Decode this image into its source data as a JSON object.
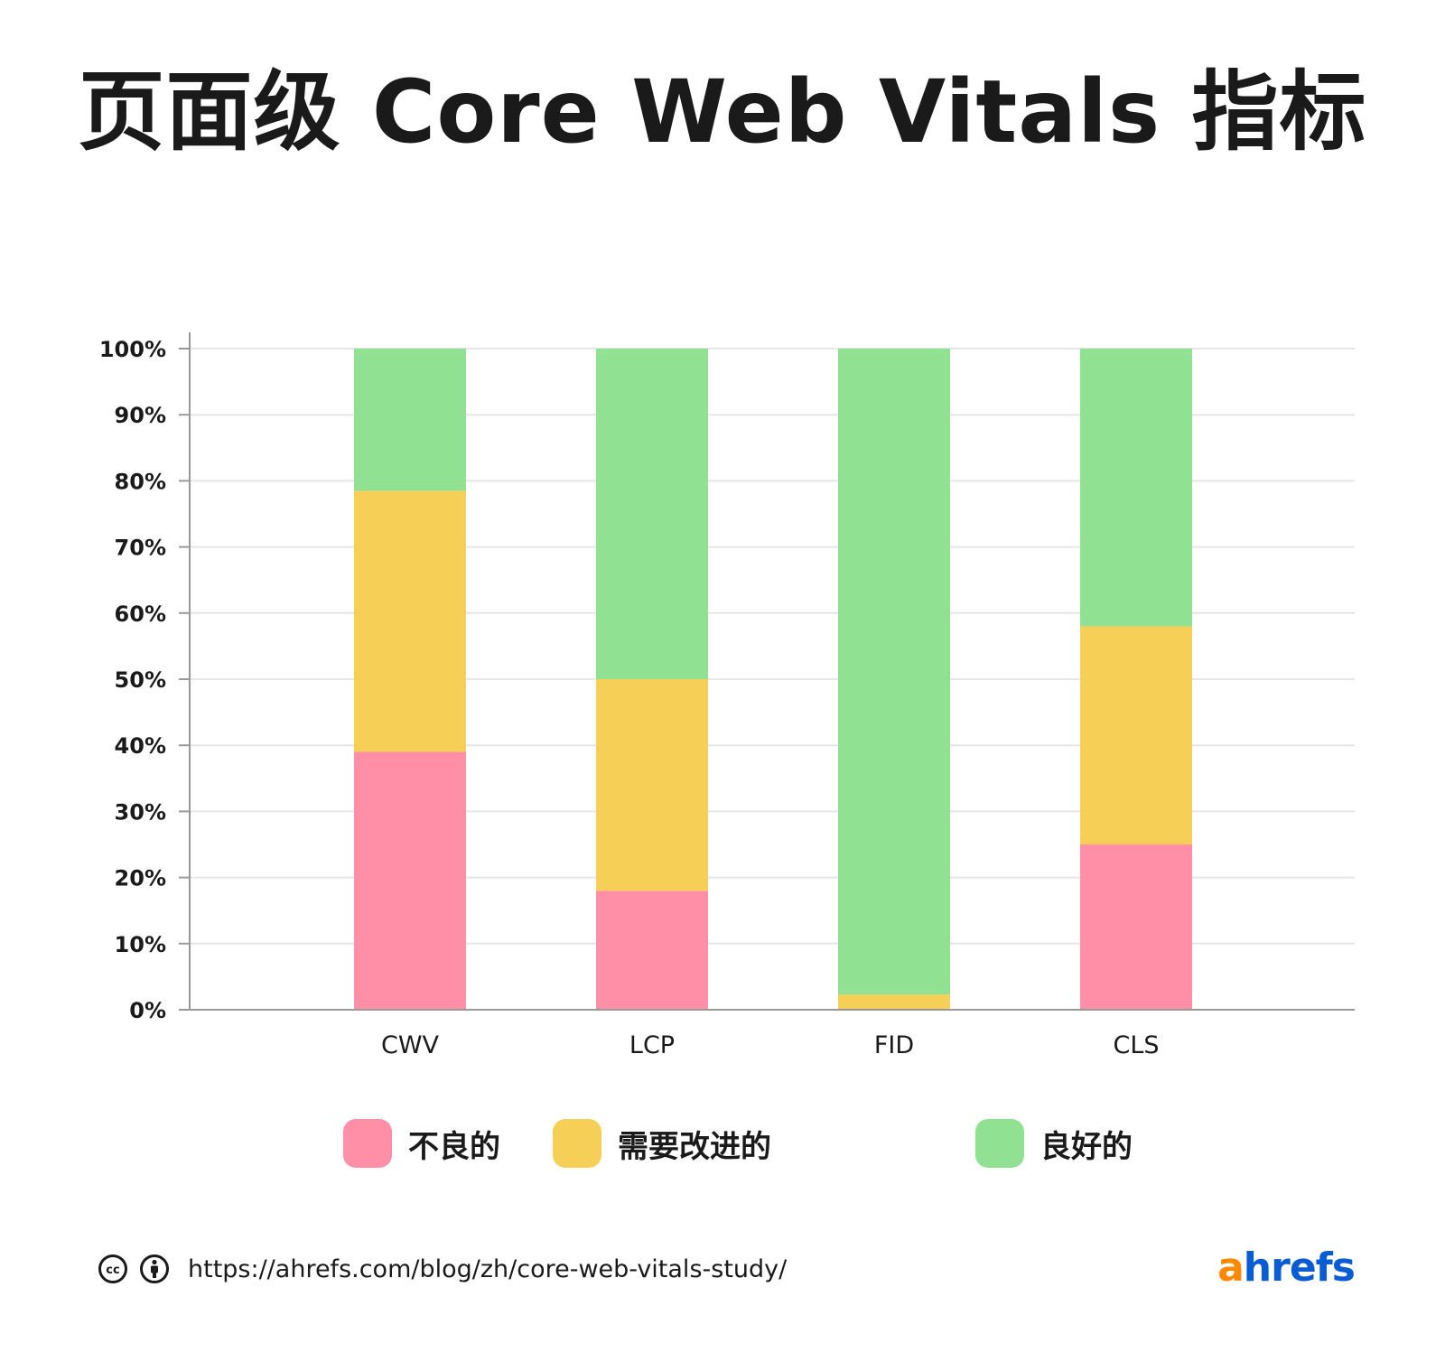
{
  "title": "页面级 Core Web Vitals 指标",
  "chart_data": {
    "type": "bar",
    "stacked": true,
    "categories": [
      "CWV",
      "LCP",
      "FID",
      "CLS"
    ],
    "series": [
      {
        "name": "不良的",
        "values": [
          39,
          18,
          0,
          25
        ],
        "color": "#ff8fa6"
      },
      {
        "name": "需要改进的",
        "values": [
          39.5,
          32,
          2.3,
          33
        ],
        "color": "#f6cf57"
      },
      {
        "name": "良好的",
        "values": [
          21.5,
          50,
          97.7,
          42
        ],
        "color": "#90e192"
      }
    ],
    "ylim": [
      0,
      100
    ],
    "yticks": [
      "0%",
      "10%",
      "20%",
      "30%",
      "40%",
      "50%",
      "60%",
      "70%",
      "80%",
      "90%",
      "100%"
    ],
    "grid": true,
    "legend": "bottom"
  },
  "footer": {
    "url": "https://ahrefs.com/blog/zh/core-web-vitals-study/",
    "icons": [
      "cc-icon",
      "attribution-icon"
    ]
  },
  "brand": {
    "a": "a",
    "rest": "hrefs"
  }
}
